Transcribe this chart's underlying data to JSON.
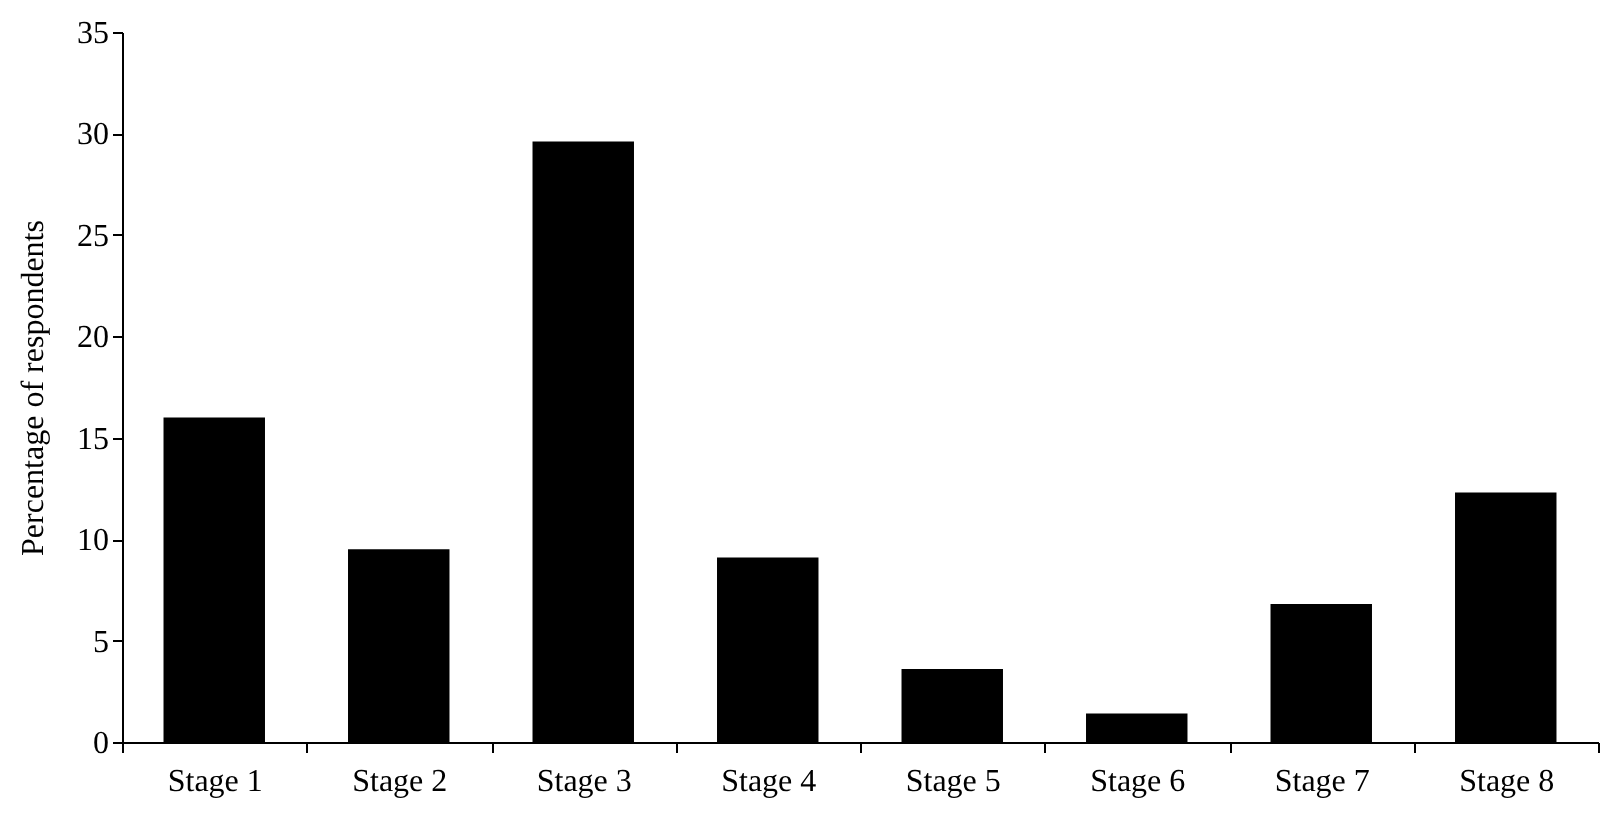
{
  "chart_data": {
    "type": "bar",
    "ylabel": "Percentage of respondents",
    "categories": [
      "Stage 1",
      "Stage 2",
      "Stage 3",
      "Stage 4",
      "Stage 5",
      "Stage 6",
      "Stage 7",
      "Stage 8"
    ],
    "values": [
      16,
      9.5,
      29.6,
      9.1,
      3.6,
      1.4,
      6.8,
      12.3
    ],
    "color": "#000000",
    "ylim": [
      0,
      35
    ],
    "yticks": [
      0,
      5,
      10,
      15,
      20,
      25,
      30,
      35
    ],
    "grid": false
  }
}
